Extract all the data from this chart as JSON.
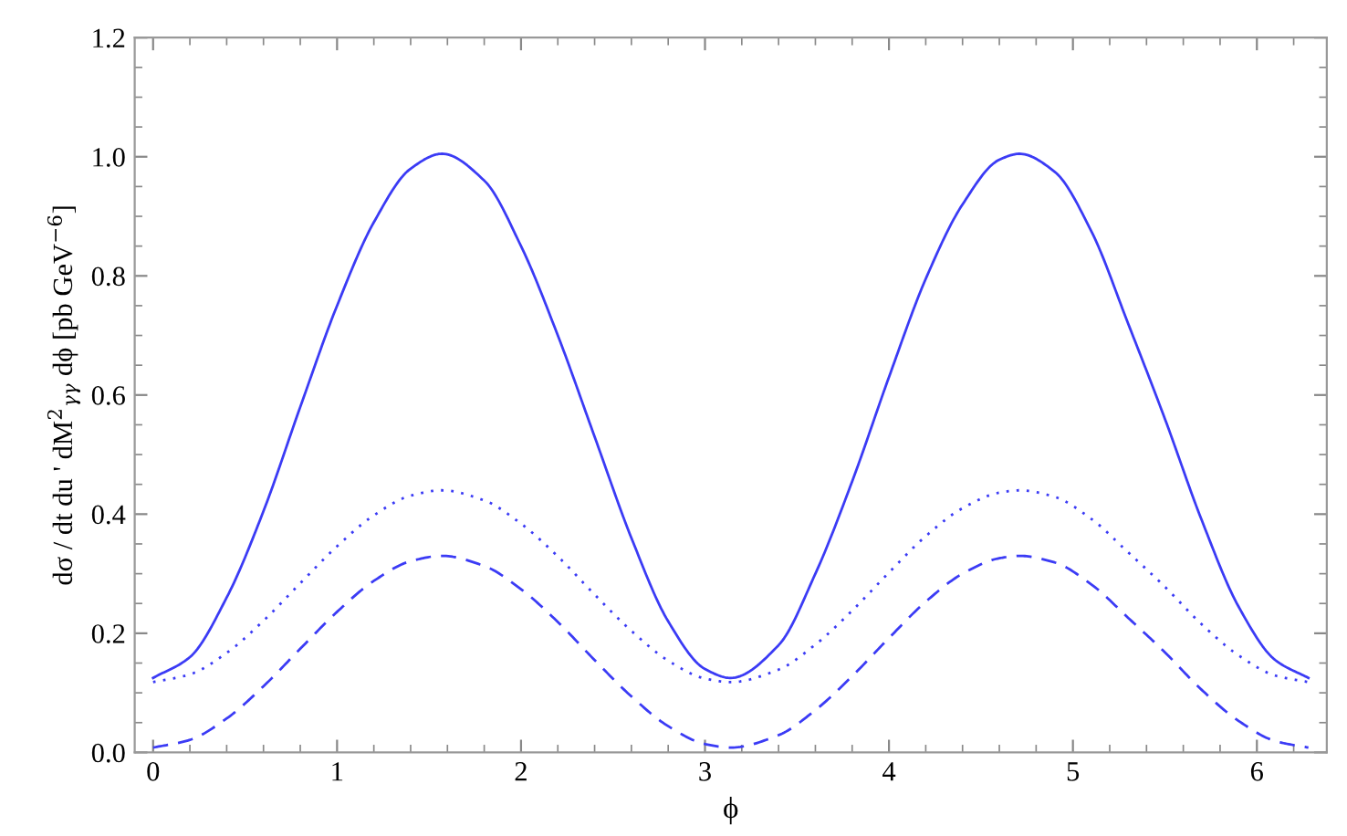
{
  "chart_data": {
    "type": "line",
    "xlabel": "ϕ",
    "ylabel": "dσ / dt du ' dM$^{2}$$_{γγ}$ dϕ [pb GeV$^{−6}$]",
    "xlim": [
      -0.1,
      6.38
    ],
    "ylim": [
      0,
      1.2
    ],
    "xticks": [
      0,
      1,
      2,
      3,
      4,
      5,
      6
    ],
    "yticks": [
      {
        "value": 0,
        "label": "0.0"
      },
      0.2,
      0.4,
      0.6,
      0.8,
      {
        "value": 1,
        "label": "1.0"
      },
      1.2
    ],
    "grid": false,
    "marker": "none",
    "x": [
      0,
      0.2,
      0.4,
      0.6,
      0.8,
      1.0,
      1.2,
      1.4,
      1.57,
      1.8,
      2.0,
      2.2,
      2.4,
      2.6,
      2.8,
      3.0,
      3.14,
      3.4,
      3.6,
      3.8,
      4.0,
      4.2,
      4.4,
      4.6,
      4.71,
      4.9,
      5.1,
      5.3,
      5.5,
      5.7,
      5.9,
      6.1,
      6.28
    ],
    "series": [
      {
        "color": "#3b3bf5",
        "line_style": "solid",
        "values": [
          0.125,
          0.16,
          0.26,
          0.405,
          0.58,
          0.75,
          0.89,
          0.98,
          1.005,
          0.96,
          0.85,
          0.7,
          0.53,
          0.36,
          0.22,
          0.14,
          0.125,
          0.18,
          0.3,
          0.455,
          0.63,
          0.795,
          0.92,
          0.995,
          1.005,
          0.975,
          0.875,
          0.72,
          0.56,
          0.39,
          0.245,
          0.155,
          0.125
        ]
      },
      {
        "color": "#3b3bf5",
        "line_style": "dotted",
        "values": [
          0.118,
          0.131,
          0.167,
          0.221,
          0.284,
          0.346,
          0.398,
          0.431,
          0.44,
          0.423,
          0.384,
          0.329,
          0.265,
          0.204,
          0.154,
          0.124,
          0.118,
          0.139,
          0.181,
          0.238,
          0.302,
          0.363,
          0.41,
          0.436,
          0.44,
          0.429,
          0.392,
          0.336,
          0.278,
          0.215,
          0.163,
          0.129,
          0.118
        ]
      },
      {
        "color": "#3b3bf5",
        "line_style": "dashed",
        "values": [
          0.008,
          0.021,
          0.057,
          0.111,
          0.174,
          0.236,
          0.288,
          0.321,
          0.33,
          0.313,
          0.274,
          0.219,
          0.155,
          0.094,
          0.044,
          0.014,
          0.008,
          0.029,
          0.071,
          0.128,
          0.192,
          0.253,
          0.3,
          0.326,
          0.33,
          0.319,
          0.282,
          0.226,
          0.168,
          0.105,
          0.053,
          0.019,
          0.008
        ]
      }
    ]
  }
}
